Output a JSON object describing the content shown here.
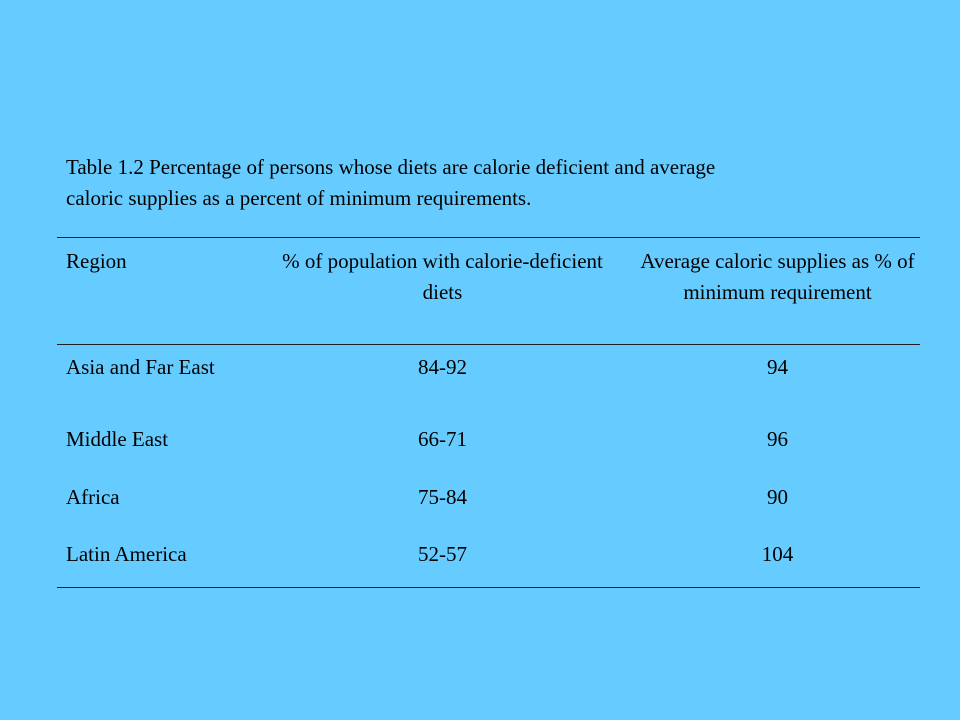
{
  "caption": {
    "line1": "Table 1.2  Percentage of persons whose diets are calorie deficient and average",
    "line2": "caloric supplies as a percent of minimum requirements."
  },
  "table": {
    "headers": [
      "Region",
      "% of population with calorie-deficient diets",
      "Average caloric supplies as % of minimum requirement"
    ],
    "rows": [
      [
        "Asia and Far East",
        "84-92",
        "94"
      ],
      [
        "Middle East",
        "66-71",
        "96"
      ],
      [
        "Africa",
        "75-84",
        "90"
      ],
      [
        "Latin America",
        "52-57",
        "104"
      ]
    ]
  },
  "colors": {
    "background": "#66ccff",
    "text": "#000000",
    "rule": "#222222"
  }
}
